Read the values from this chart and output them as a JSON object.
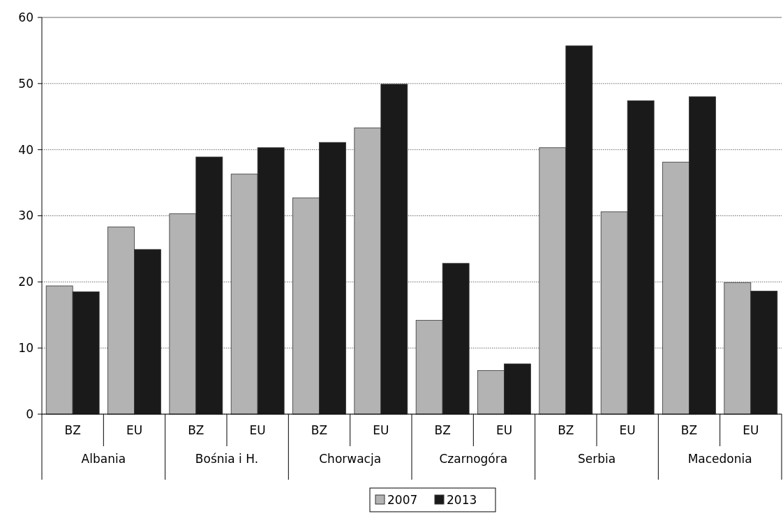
{
  "chart_data": {
    "type": "bar",
    "categories": [
      "BZ",
      "EU",
      "BZ",
      "EU",
      "BZ",
      "EU",
      "BZ",
      "EU",
      "BZ",
      "EU",
      "BZ",
      "EU"
    ],
    "annotations": [
      "Albania",
      "Bośnia i H.",
      "Chorwacja",
      "Czarnogóra",
      "Serbia",
      "Macedonia"
    ],
    "series": [
      {
        "name": "2007",
        "color": "#b3b3b3",
        "values": [
          19.4,
          28.3,
          30.3,
          36.3,
          32.7,
          43.3,
          14.2,
          6.6,
          40.3,
          30.6,
          38.1,
          19.9
        ]
      },
      {
        "name": "2013",
        "color": "#1a1a1a",
        "values": [
          18.5,
          24.9,
          38.9,
          40.3,
          41.1,
          49.9,
          22.8,
          7.6,
          55.7,
          47.4,
          48.0,
          18.6
        ]
      }
    ],
    "ylim": [
      0,
      60
    ],
    "yticks": [
      0,
      10,
      20,
      30,
      40,
      50,
      60
    ],
    "grid": "y",
    "legend": "bottom"
  }
}
